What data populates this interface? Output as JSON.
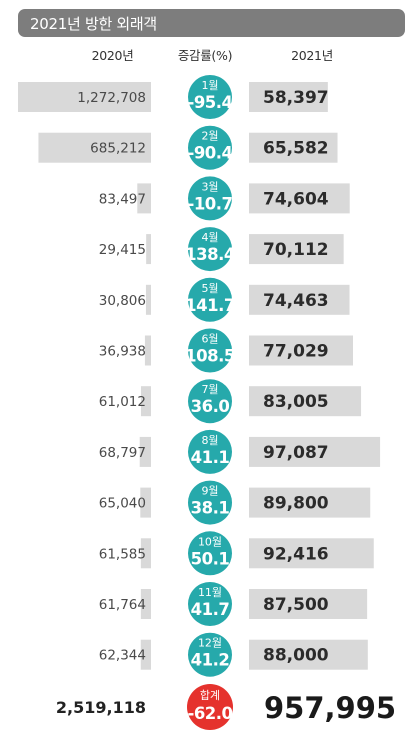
{
  "title": "2021년 방한 외래객",
  "headers": {
    "y2020": "2020년",
    "rate": "증감률(%)",
    "y2021": "2021년"
  },
  "colors": {
    "bar": "#d9d9d9",
    "positive": "#26a9ab",
    "total": "#e5322d",
    "title_bg": "#7d7d7d"
  },
  "chart_data": {
    "type": "bar",
    "title": "2021년 방한 외래객",
    "categories": [
      "1월",
      "2월",
      "3월",
      "4월",
      "5월",
      "6월",
      "7월",
      "8월",
      "9월",
      "10월",
      "11월",
      "12월"
    ],
    "series": [
      {
        "name": "2020년",
        "values": [
          1272708,
          685212,
          83497,
          29415,
          30806,
          36938,
          61012,
          68797,
          65040,
          61585,
          61764,
          62344
        ]
      },
      {
        "name": "2021년",
        "values": [
          58397,
          65582,
          74604,
          70112,
          74463,
          77029,
          83005,
          97087,
          89800,
          92416,
          87500,
          88000
        ]
      }
    ],
    "labels_2020": [
      "1,272,708",
      "685,212",
      "83,497",
      "29,415",
      "30,806",
      "36,938",
      "61,012",
      "68,797",
      "65,040",
      "61,585",
      "61,764",
      "62,344"
    ],
    "labels_2021": [
      "58,397",
      "65,582",
      "74,604",
      "70,112",
      "74,463",
      "77,029",
      "83,005",
      "97,087",
      "89,800",
      "92,416",
      "87,500",
      "88,000"
    ],
    "rates": [
      "-95.4",
      "-90.4",
      "-10.7",
      "138.4",
      "141.7",
      "108.5",
      "36.0",
      "41.1",
      "38.1",
      "50.1",
      "41.7",
      "41.2"
    ],
    "total": {
      "label": "합계",
      "y2020": "2,519,118",
      "rate": "-62.0",
      "y2021": "957,995"
    }
  }
}
